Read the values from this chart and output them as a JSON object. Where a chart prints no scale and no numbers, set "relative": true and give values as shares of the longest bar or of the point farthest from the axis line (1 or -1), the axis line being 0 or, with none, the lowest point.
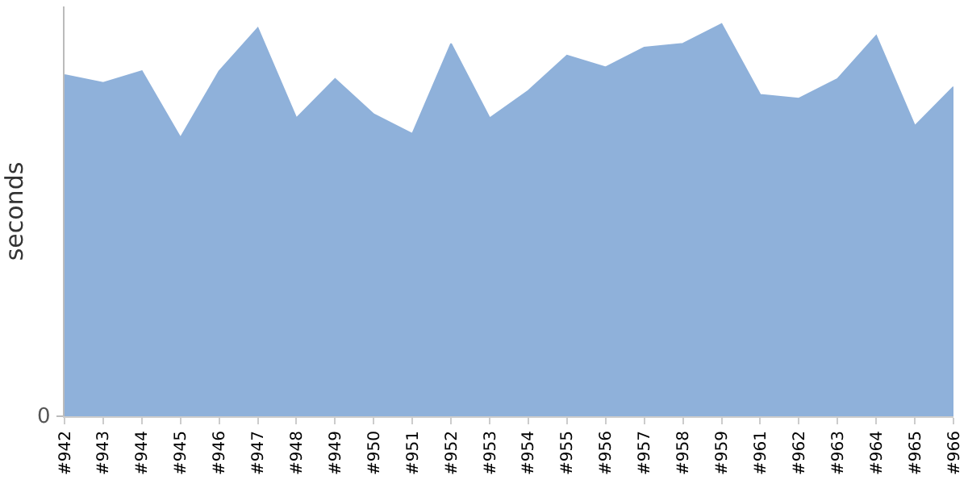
{
  "chart_data": {
    "type": "area",
    "ylabel": "seconds",
    "relative": true,
    "annotations": [
      "0"
    ],
    "categories": [
      "#942",
      "#943",
      "#944",
      "#945",
      "#946",
      "#947",
      "#948",
      "#949",
      "#950",
      "#951",
      "#952",
      "#953",
      "#954",
      "#955",
      "#956",
      "#957",
      "#958",
      "#959",
      "#961",
      "#962",
      "#963",
      "#964",
      "#965",
      "#966"
    ],
    "series": [
      {
        "color": "#8fb1da",
        "values": [
          0.87,
          0.85,
          0.88,
          0.71,
          0.88,
          0.99,
          0.76,
          0.86,
          0.77,
          0.72,
          0.95,
          0.76,
          0.83,
          0.92,
          0.89,
          0.94,
          0.95,
          1,
          0.82,
          0.81,
          0.86,
          0.97,
          0.74,
          0.84
        ]
      }
    ],
    "grid": false
  }
}
